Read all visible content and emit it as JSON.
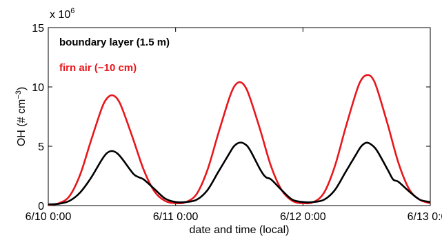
{
  "chart_data": {
    "type": "line",
    "xlabel": "date and time (local)",
    "ylabel_main": "OH (# cm",
    "ylabel_sup": "−3",
    "ylabel_close": ")",
    "y_multiplier_base": "x 10",
    "y_multiplier_exp": "6",
    "xlim": [
      0,
      72
    ],
    "ylim": [
      0,
      15
    ],
    "x_ticks": [
      0,
      24,
      48,
      72
    ],
    "x_tick_labels": [
      "6/10 0:00",
      "6/11 0:00",
      "6/12 0:00",
      "6/13 0:00"
    ],
    "y_ticks": [
      0,
      5,
      10,
      15
    ],
    "y_tick_labels": [
      "0",
      "5",
      "10",
      "15"
    ],
    "grid": false,
    "legend": "top-left",
    "series": [
      {
        "name": "boundary layer (1.5 m)",
        "color": "#000000",
        "x": [
          0,
          2,
          4,
          6,
          8,
          10,
          11,
          12,
          13,
          14,
          16,
          17,
          18,
          20,
          22,
          24,
          26,
          28,
          30,
          32,
          34,
          35,
          36,
          37,
          38,
          40,
          41,
          42,
          44,
          46,
          48,
          50,
          52,
          54,
          56,
          58,
          59,
          60,
          61,
          62,
          64,
          65,
          66,
          68,
          70,
          72
        ],
        "y": [
          0.1,
          0.15,
          0.4,
          1.1,
          2.3,
          3.8,
          4.4,
          4.6,
          4.4,
          3.9,
          2.7,
          2.4,
          2.2,
          1.4,
          0.6,
          0.3,
          0.3,
          0.5,
          1.3,
          2.8,
          4.3,
          5.0,
          5.3,
          5.2,
          4.7,
          3.0,
          2.4,
          2.2,
          1.3,
          0.5,
          0.3,
          0.3,
          0.5,
          1.3,
          2.8,
          4.3,
          5.0,
          5.3,
          5.1,
          4.6,
          3.0,
          2.2,
          2.0,
          1.2,
          0.5,
          0.3
        ]
      },
      {
        "name": "firn air (−10 cm)",
        "color": "#e8161b",
        "x": [
          0,
          2,
          4,
          6,
          8,
          10,
          11,
          12,
          13,
          14,
          16,
          18,
          20,
          22,
          24,
          26,
          28,
          30,
          32,
          34,
          35,
          36,
          37,
          38,
          40,
          42,
          44,
          46,
          48,
          50,
          52,
          54,
          56,
          58,
          59,
          60,
          61,
          62,
          64,
          66,
          68,
          70,
          72
        ],
        "y": [
          0.05,
          0.2,
          0.8,
          2.6,
          5.4,
          8.1,
          9.0,
          9.3,
          9.0,
          8.1,
          5.6,
          3.0,
          1.2,
          0.4,
          0.2,
          0.3,
          1.0,
          3.0,
          6.0,
          8.9,
          10.0,
          10.4,
          10.1,
          9.1,
          6.3,
          3.3,
          1.3,
          0.4,
          0.2,
          0.3,
          1.1,
          3.3,
          6.5,
          9.5,
          10.6,
          11.0,
          10.8,
          9.8,
          6.8,
          3.6,
          1.4,
          0.5,
          0.2
        ]
      }
    ]
  }
}
